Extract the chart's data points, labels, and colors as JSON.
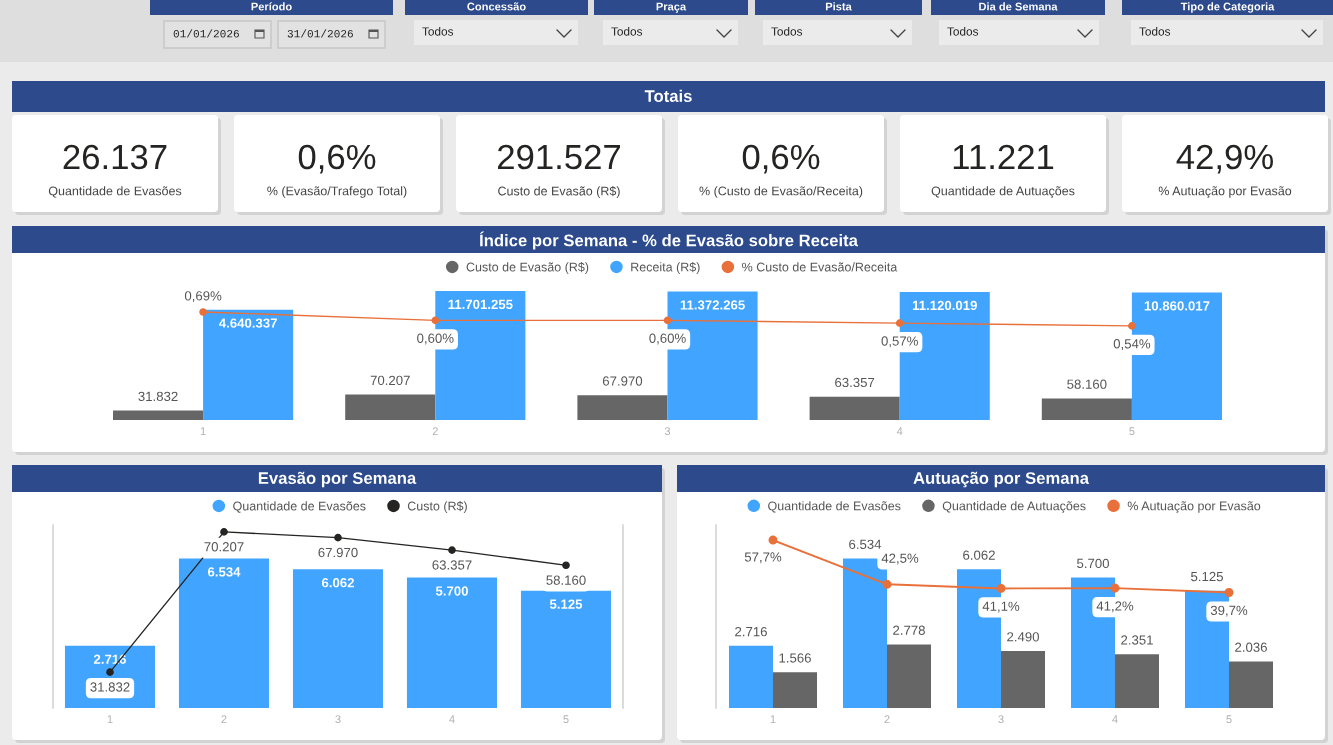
{
  "chart_data": [
    {
      "type": "other",
      "categories": [
        "Período",
        "Concessão",
        "Praça",
        "Pista",
        "Dia de Semana",
        "Tipo de Categoria"
      ],
      "annotations": [
        "01/01/2026",
        "31/01/2026",
        "Todos",
        "Todos",
        "Todos",
        "Todos",
        "Todos"
      ]
    },
    {
      "type": "other",
      "title": "Totais",
      "categories": [
        "Quantidade de Evasões",
        "% (Evasão/Trafego Total)",
        "Custo de Evasão (R$)",
        "% (Custo de Evasão/Receita)",
        "Quantidade de Autuações",
        "% Autuação por Evasão"
      ],
      "annotations": [
        "26.137",
        "0,6%",
        "291.527",
        "0,6%",
        "11.221",
        "42,9%"
      ]
    },
    {
      "type": "bar",
      "title": "Índice por Semana - % de Evasão sobre Receita",
      "categories": [
        "1",
        "2",
        "3",
        "4",
        "5"
      ],
      "series": [
        {
          "name": "Custo de Evasão (R$)",
          "color": "#666666",
          "values": [
            31832,
            70207,
            67970,
            63357,
            58160
          ],
          "value_labels": [
            "31.832",
            "70.207",
            "67.970",
            "63.357",
            "58.160"
          ]
        },
        {
          "name": "Receita (R$)",
          "color": "#41a5ff",
          "values": [
            4640337,
            11701255,
            11372265,
            11120019,
            10860017
          ],
          "value_labels": [
            "4.640.337",
            "11.701.255",
            "11.372.265",
            "11.120.019",
            "10.860.017"
          ]
        },
        {
          "name": "% Custo de Evasão/Receita",
          "type": "line",
          "axis": "y2",
          "color": "#e8703a",
          "values": [
            0.69,
            0.6,
            0.6,
            0.57,
            0.54
          ],
          "value_labels": [
            "0,69%",
            "0,60%",
            "0,60%",
            "0,57%",
            "0,54%"
          ]
        }
      ],
      "ylim": [
        20000,
        11701255
      ],
      "log": true,
      "legend": "top",
      "marker": "circle",
      "tick_labels": "x"
    },
    {
      "type": "bar",
      "title": "Evasão por Semana",
      "categories": [
        "1",
        "2",
        "3",
        "4",
        "5"
      ],
      "series": [
        {
          "name": "Quantidade de Evasões",
          "color": "#41a5ff",
          "values": [
            2716,
            6534,
            6062,
            5700,
            5125
          ],
          "value_labels": [
            "2.716",
            "6.534",
            "6.062",
            "5.700",
            "5.125"
          ]
        },
        {
          "name": "Custo (R$)",
          "type": "line",
          "axis": "y2",
          "color": "#252423",
          "values": [
            31832,
            70207,
            67970,
            63357,
            58160
          ],
          "value_labels": [
            "31.832",
            "70.207",
            "67.970",
            "63.357",
            "58.160"
          ]
        }
      ],
      "ylim": [
        0,
        8000
      ],
      "y2lim": [
        26000,
        73000
      ],
      "log": "y2",
      "legend": "top",
      "marker": "circle",
      "tick_labels": "x"
    },
    {
      "type": "bar",
      "title": "Autuação por Semana",
      "categories": [
        "1",
        "2",
        "3",
        "4",
        "5"
      ],
      "series": [
        {
          "name": "Quantidade de Evasões",
          "color": "#41a5ff",
          "values": [
            2716,
            6534,
            6062,
            5700,
            5125
          ],
          "value_labels": [
            "2.716",
            "6.534",
            "6.062",
            "5.700",
            "5.125"
          ]
        },
        {
          "name": "Quantidade de Autuações",
          "color": "#666666",
          "values": [
            1566,
            2778,
            2490,
            2351,
            2036
          ],
          "value_labels": [
            "1.566",
            "2.778",
            "2.490",
            "2.351",
            "2.036"
          ]
        },
        {
          "name": "% Autuação por Evasão",
          "type": "line",
          "axis": "y2",
          "color": "#e8703a",
          "values": [
            57.7,
            42.5,
            41.1,
            41.2,
            39.7
          ],
          "value_labels": [
            "57,7%",
            "42,5%",
            "41,1%",
            "41,2%",
            "39,7%"
          ]
        }
      ],
      "ylim": [
        0,
        8000
      ],
      "legend": "top",
      "marker": "circle",
      "tick_labels": "x"
    }
  ]
}
